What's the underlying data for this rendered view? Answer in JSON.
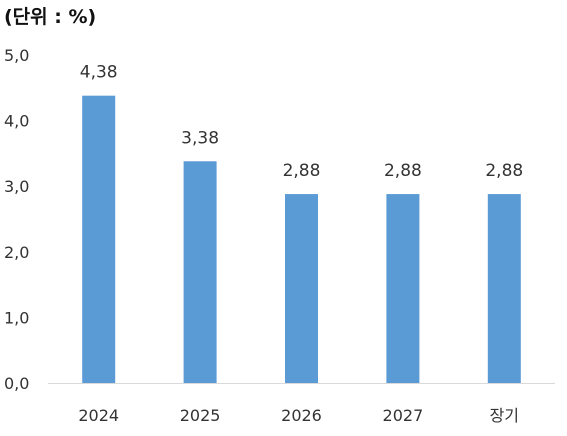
{
  "unit_label": "(단위 : %)",
  "colors": {
    "bar": "#5b9bd5",
    "axis": "#d9d9d9",
    "text": "#333333"
  },
  "chart_data": {
    "type": "bar",
    "title": "",
    "xlabel": "",
    "ylabel": "",
    "categories": [
      "2024",
      "2025",
      "2026",
      "2027",
      "장기"
    ],
    "values": [
      4.38,
      3.38,
      2.88,
      2.88,
      2.88
    ],
    "data_labels": [
      "4,38",
      "3,38",
      "2,88",
      "2,88",
      "2,88"
    ],
    "yticks": [
      0,
      1,
      2,
      3,
      4,
      5
    ],
    "ytick_labels": [
      "0,0",
      "1,0",
      "2,0",
      "3,0",
      "4,0",
      "5,0"
    ],
    "ylim": [
      0,
      5
    ],
    "grid": false,
    "legend": "none"
  }
}
